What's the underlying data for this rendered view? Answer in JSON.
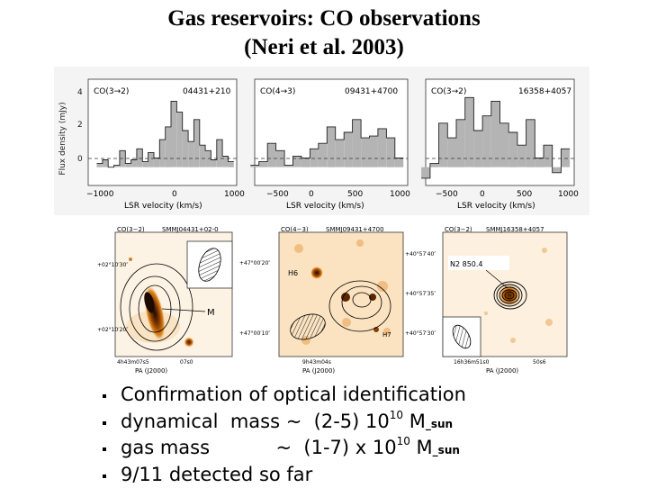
{
  "title": {
    "line1": "Gas reservoirs: CO observations",
    "line2": "(Neri et al. 2003)"
  },
  "spectra": {
    "y_axis_label": "Flux density (mJy)",
    "x_axis_label": "LSR velocity (km/s)",
    "y_ticks": [
      "4",
      "2",
      "0"
    ],
    "panels": [
      {
        "line": "CO(3→2)",
        "source": "04431+210",
        "x_ticks": [
          "−1000",
          "0",
          "1000"
        ]
      },
      {
        "line": "CO(4→3)",
        "source": "09431+4700",
        "x_ticks": [
          "−500",
          "0",
          "500",
          "1000"
        ]
      },
      {
        "line": "CO(3→2)",
        "source": "16358+4057",
        "x_ticks": [
          "−500",
          "0",
          "500",
          "1000"
        ]
      }
    ]
  },
  "chart_data": [
    {
      "type": "bar",
      "xlabel": "LSR velocity (km/s)",
      "ylabel": "Flux density (mJy)",
      "xlim": [
        -1500,
        1100
      ],
      "ylim": [
        -1,
        4.8
      ],
      "x": [
        -1300,
        -1200,
        -1100,
        -1000,
        -900,
        -800,
        -700,
        -600,
        -500,
        -400,
        -300,
        -200,
        -100,
        0,
        100,
        200,
        300,
        400,
        500,
        600,
        700,
        800,
        900,
        1000
      ],
      "values": [
        0.2,
        0.4,
        0,
        0.1,
        0.9,
        0.2,
        0.4,
        1,
        0.3,
        0.8,
        0.5,
        1.5,
        2.2,
        3.6,
        3.0,
        2.0,
        1.4,
        2.6,
        1.2,
        0.9,
        0.4,
        1.5,
        0.6,
        0.3
      ]
    },
    {
      "type": "bar",
      "xlabel": "LSR velocity (km/s)",
      "xlim": [
        -800,
        1000
      ],
      "ylim": [
        -1,
        4.8
      ],
      "x": [
        -800,
        -700,
        -600,
        -500,
        -400,
        -300,
        -200,
        -100,
        0,
        100,
        200,
        300,
        400,
        500,
        600,
        700,
        800,
        900
      ],
      "values": [
        0.1,
        0.3,
        1.3,
        0.9,
        0.1,
        0.6,
        0.5,
        1.0,
        1.3,
        2.2,
        1.5,
        1.9,
        2.6,
        1.6,
        1.7,
        2.1,
        1.6,
        0.5
      ]
    },
    {
      "type": "bar",
      "xlabel": "LSR velocity (km/s)",
      "xlim": [
        -700,
        1000
      ],
      "ylim": [
        -1,
        4.8
      ],
      "x": [
        -700,
        -600,
        -500,
        -400,
        -300,
        -200,
        -100,
        0,
        100,
        200,
        300,
        400,
        500,
        600,
        700,
        800,
        900
      ],
      "values": [
        -0.6,
        0.2,
        2.4,
        1.6,
        2.6,
        3.8,
        2.0,
        2.8,
        3.6,
        2.4,
        1.9,
        1.2,
        2.6,
        0.5,
        1.2,
        -0.3,
        1.0
      ]
    }
  ],
  "maps": {
    "axis_label": "PA (J2000)",
    "panels": [
      {
        "label": "CO(3−2)",
        "source": "SMMJ04431+02‐0",
        "annotation": "M",
        "ra_ticks": [
          "4h43m07s5",
          "07s0"
        ],
        "dec_ticks": [
          "+02°10′30″",
          "+02°10′20″"
        ]
      },
      {
        "label": "CO(4−3)",
        "source": "SMMJ09431+4700",
        "annotation": "H6",
        "annotation2": "H7",
        "ra_ticks": [
          "9h43m04s"
        ],
        "dec_ticks": [
          "+47°00′20″",
          "+47°00′10″"
        ]
      },
      {
        "label": "CO(3−2)",
        "source": "SMMJ16358+4057",
        "annotation": "N2 850.4",
        "ra_ticks": [
          "16h36m51s0",
          "50s6"
        ],
        "dec_ticks": [
          "+40°57′40″",
          "+40°57′35″",
          "+40°57′30″"
        ]
      }
    ]
  },
  "bullets": {
    "b1": {
      "text": "Confirmation of optical identification"
    },
    "b2": {
      "prefix": "dynamical  mass ~  (2-5) 10",
      "exp": "10",
      "unit": " M",
      "sub": "_sun"
    },
    "b3": {
      "prefix": "gas mass           ~  (1-7) x 10",
      "exp": "10",
      "unit": " M",
      "sub": "_sun"
    },
    "b4": {
      "text": "9/11 detected so far"
    }
  },
  "colors": {
    "bar_fill": "#b4b4b4",
    "map_hot": "#c86400",
    "map_dim": "#f0c890"
  }
}
